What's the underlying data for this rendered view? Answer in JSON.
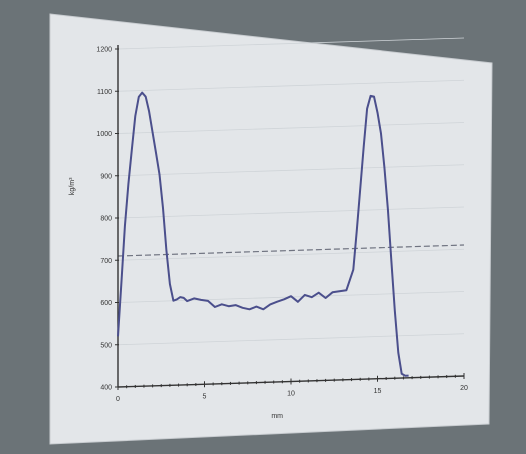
{
  "chart_data": {
    "type": "line",
    "xlabel": "mm",
    "ylabel": "kg/m³",
    "xlim": [
      0,
      20
    ],
    "ylim": [
      400,
      1200
    ],
    "x_ticks": [
      "0",
      "5",
      "10",
      "15",
      "20"
    ],
    "y_ticks": [
      "400",
      "500",
      "600",
      "700",
      "800",
      "900",
      "1000",
      "1100",
      "1200"
    ],
    "grid": "horizontal",
    "reference_line": {
      "y": 710,
      "style": "dashed"
    },
    "colors": {
      "series": "#4b4f8c",
      "reference": "#6f7380",
      "axis": "#333333",
      "paper": "#e3e6e9",
      "background": "#6b7377"
    },
    "series": [
      {
        "x": [
          0,
          0.2,
          0.4,
          0.6,
          0.8,
          1.0,
          1.2,
          1.4,
          1.6,
          1.8,
          2.0,
          2.2,
          2.4,
          2.6,
          2.8,
          3.0,
          3.2,
          3.4,
          3.6,
          3.8,
          4.0,
          4.4,
          4.8,
          5.2,
          5.6,
          6.0,
          6.4,
          6.8,
          7.2,
          7.6,
          8.0,
          8.4,
          8.8,
          9.2,
          9.6,
          10.0,
          10.4,
          10.8,
          11.2,
          11.6,
          12.0,
          12.4,
          12.8,
          13.2,
          13.6,
          13.8,
          14.0,
          14.2,
          14.4,
          14.6,
          14.8,
          15.0,
          15.2,
          15.4,
          15.6,
          15.8,
          16.0,
          16.2,
          16.4,
          16.6,
          16.8
        ],
        "y": [
          520,
          650,
          780,
          880,
          960,
          1040,
          1085,
          1095,
          1085,
          1050,
          1000,
          950,
          900,
          820,
          720,
          640,
          600,
          603,
          608,
          606,
          598,
          604,
          600,
          597,
          582,
          588,
          583,
          585,
          578,
          574,
          580,
          573,
          584,
          590,
          595,
          602,
          588,
          604,
          598,
          608,
          595,
          608,
          610,
          612,
          660,
          750,
          850,
          950,
          1040,
          1070,
          1068,
          1030,
          980,
          900,
          800,
          680,
          560,
          460,
          410,
          405,
          405
        ]
      }
    ]
  }
}
